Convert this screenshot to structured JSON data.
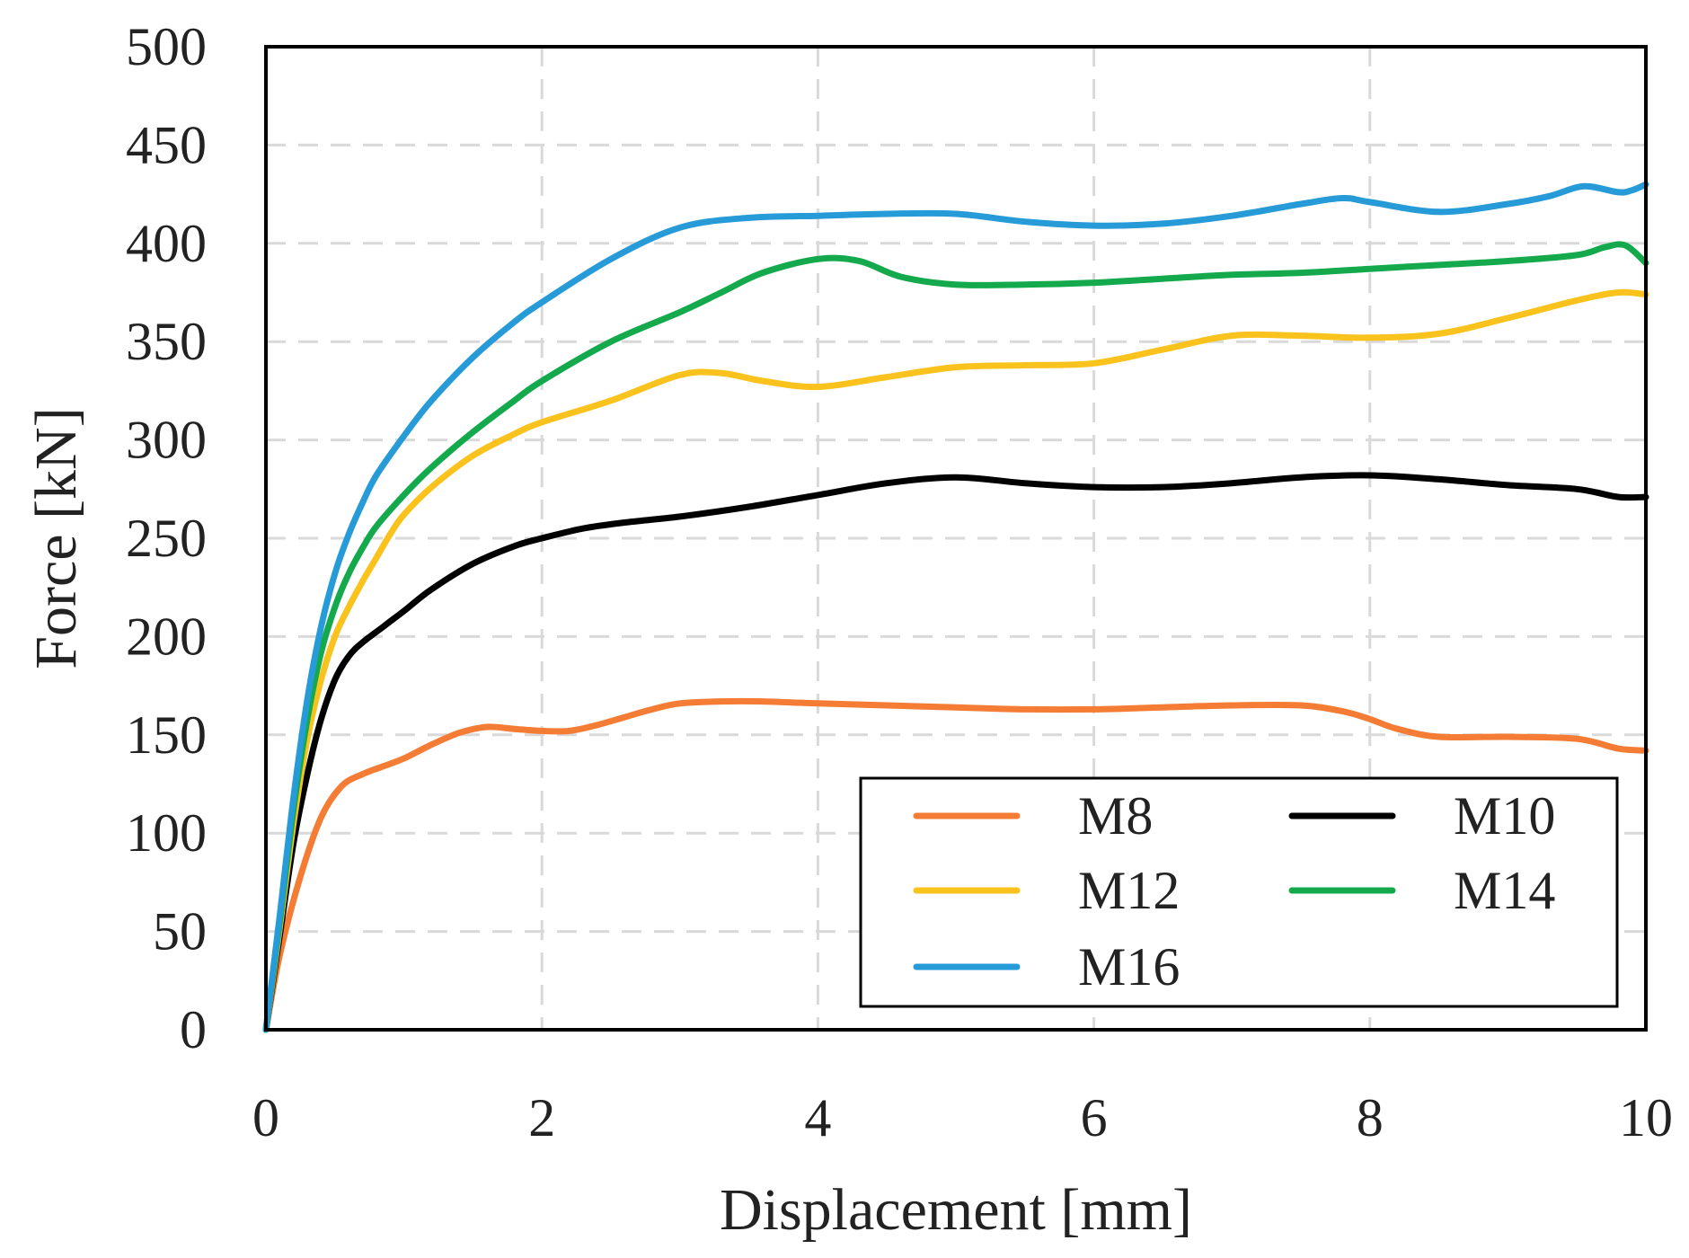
{
  "chart_data": {
    "type": "line",
    "title": "",
    "xlabel": "Displacement [mm]",
    "ylabel": "Force [kN]",
    "xlim": [
      0,
      10
    ],
    "ylim": [
      0,
      500
    ],
    "xticks": [
      0,
      2,
      4,
      6,
      8,
      10
    ],
    "yticks": [
      0,
      50,
      100,
      150,
      200,
      250,
      300,
      350,
      400,
      450,
      500
    ],
    "grid": true,
    "legend_position": "bottom-right",
    "series": [
      {
        "name": "M8",
        "color": "#f47c34",
        "x": [
          0,
          0.1,
          0.25,
          0.4,
          0.55,
          0.7,
          0.85,
          1.0,
          1.2,
          1.4,
          1.6,
          1.8,
          2.0,
          2.2,
          2.4,
          2.6,
          2.8,
          3.0,
          3.3,
          3.6,
          4.0,
          4.5,
          5.0,
          5.5,
          6.0,
          6.5,
          7.0,
          7.5,
          7.8,
          8.0,
          8.2,
          8.5,
          9.0,
          9.5,
          9.8,
          10.0
        ],
        "values": [
          0,
          38,
          78,
          108,
          124,
          130,
          134,
          138,
          145,
          151,
          154,
          153,
          152,
          152,
          155,
          159,
          163,
          166,
          167,
          167,
          166,
          165,
          164,
          163,
          163,
          164,
          165,
          165,
          162,
          158,
          153,
          149,
          149,
          148,
          143,
          142
        ]
      },
      {
        "name": "M10",
        "color": "#000000",
        "x": [
          0,
          0.1,
          0.2,
          0.3,
          0.4,
          0.5,
          0.6,
          0.7,
          0.85,
          1.0,
          1.2,
          1.5,
          1.8,
          2.0,
          2.3,
          2.6,
          3.0,
          3.5,
          4.0,
          4.5,
          5.0,
          5.5,
          6.0,
          6.5,
          7.0,
          7.5,
          8.0,
          8.5,
          9.0,
          9.5,
          9.8,
          10.0
        ],
        "values": [
          0,
          48,
          95,
          130,
          158,
          178,
          190,
          197,
          205,
          213,
          224,
          237,
          246,
          250,
          255,
          258,
          261,
          266,
          272,
          278,
          281,
          278,
          276,
          276,
          278,
          281,
          282,
          280,
          277,
          275,
          271,
          271
        ]
      },
      {
        "name": "M12",
        "color": "#f9c21d",
        "x": [
          0,
          0.1,
          0.2,
          0.3,
          0.4,
          0.5,
          0.6,
          0.7,
          0.8,
          0.9,
          1.0,
          1.2,
          1.5,
          1.8,
          2.0,
          2.5,
          3.0,
          3.3,
          3.6,
          4.0,
          4.5,
          5.0,
          5.5,
          6.0,
          6.5,
          7.0,
          7.5,
          8.0,
          8.5,
          9.0,
          9.5,
          9.8,
          10.0
        ],
        "values": [
          0,
          52,
          105,
          148,
          178,
          200,
          215,
          228,
          240,
          252,
          262,
          276,
          292,
          303,
          309,
          320,
          333,
          334,
          330,
          327,
          332,
          337,
          338,
          339,
          346,
          353,
          353,
          352,
          354,
          362,
          371,
          375,
          374
        ]
      },
      {
        "name": "M14",
        "color": "#13a94c",
        "x": [
          0,
          0.1,
          0.2,
          0.3,
          0.4,
          0.5,
          0.6,
          0.7,
          0.8,
          1.0,
          1.2,
          1.5,
          1.8,
          2.0,
          2.5,
          3.0,
          3.3,
          3.6,
          4.0,
          4.3,
          4.6,
          5.0,
          5.5,
          6.0,
          6.5,
          7.0,
          7.5,
          8.0,
          8.5,
          9.0,
          9.5,
          9.7,
          9.85,
          10.0
        ],
        "values": [
          0,
          55,
          112,
          158,
          192,
          215,
          232,
          245,
          256,
          272,
          286,
          304,
          320,
          330,
          350,
          365,
          375,
          385,
          392,
          391,
          383,
          379,
          379,
          380,
          382,
          384,
          385,
          387,
          389,
          391,
          394,
          398,
          399,
          390
        ]
      },
      {
        "name": "M16",
        "color": "#279ad8",
        "x": [
          0,
          0.1,
          0.2,
          0.3,
          0.4,
          0.5,
          0.6,
          0.7,
          0.8,
          1.0,
          1.2,
          1.5,
          1.8,
          2.0,
          2.5,
          3.0,
          3.5,
          4.0,
          4.5,
          5.0,
          5.5,
          6.0,
          6.5,
          7.0,
          7.5,
          7.8,
          8.0,
          8.5,
          9.0,
          9.3,
          9.55,
          9.8,
          9.9,
          10.0
        ],
        "values": [
          0,
          58,
          118,
          168,
          205,
          232,
          252,
          268,
          282,
          302,
          320,
          342,
          360,
          370,
          392,
          408,
          413,
          414,
          415,
          415,
          411,
          409,
          410,
          414,
          420,
          423,
          421,
          416,
          420,
          424,
          429,
          426,
          427,
          430
        ]
      }
    ]
  }
}
